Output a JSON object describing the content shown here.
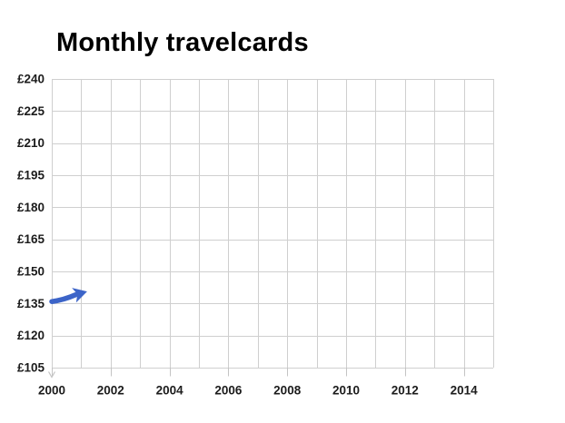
{
  "page": {
    "background": "#FFFFFF"
  },
  "chart_data": {
    "type": "line",
    "title": "Monthly travelcards",
    "title_color": "#000000",
    "x_range": [
      2000,
      2015
    ],
    "y_range": [
      105,
      240
    ],
    "x_minor_gridline_step": 1,
    "x_ticks": [
      2000,
      2002,
      2004,
      2006,
      2008,
      2010,
      2012,
      2014
    ],
    "x_tick_labels": [
      "2000",
      "2002",
      "2004",
      "2006",
      "2008",
      "2010",
      "2012",
      "2014"
    ],
    "y_ticks": [
      105,
      120,
      135,
      150,
      165,
      180,
      195,
      210,
      225,
      240
    ],
    "y_tick_labels": [
      "£105",
      "£120",
      "£135",
      "£150",
      "£165",
      "£180",
      "£195",
      "£210",
      "£225",
      "£240"
    ],
    "grid": true,
    "legend": "none",
    "axis_text_color": "#1C1C1C",
    "gridline_color": "#CFCFCF",
    "tick_color": "#C4C4C4",
    "series": [
      {
        "color": "#3C64C8",
        "style": "thick-stroke-with-arrowhead",
        "points": [
          [
            2000,
            135.9
          ],
          [
            2001.2,
            140.6
          ]
        ],
        "note": "line is only partially drawn, ending in an arrowhead pointing up-right"
      }
    ]
  }
}
